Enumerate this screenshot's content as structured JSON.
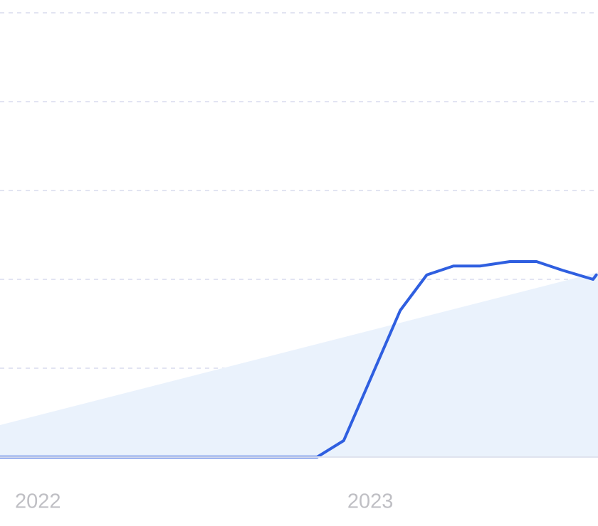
{
  "chart_data": {
    "type": "line",
    "xlim": [
      2021.886,
      2023.685
    ],
    "xticks": [
      2022,
      2023
    ],
    "ylim": [
      0,
      100
    ],
    "ygrid": [
      20,
      40,
      60,
      80,
      100
    ],
    "series": [
      {
        "color": "#eaf2fc",
        "fill": true,
        "x": [
          2021.886,
          2023.685
        ],
        "values": [
          7.2,
          41.6
        ]
      },
      {
        "color": "#2f5fe0",
        "x": [
          2021.886,
          2022.84,
          2022.92,
          2023.09,
          2023.17,
          2023.25,
          2023.33,
          2023.42,
          2023.5,
          2023.58,
          2023.67,
          2023.68
        ],
        "values": [
          0,
          0,
          3.7,
          33,
          41,
          43,
          43,
          44,
          44,
          42,
          40,
          41
        ]
      }
    ]
  }
}
